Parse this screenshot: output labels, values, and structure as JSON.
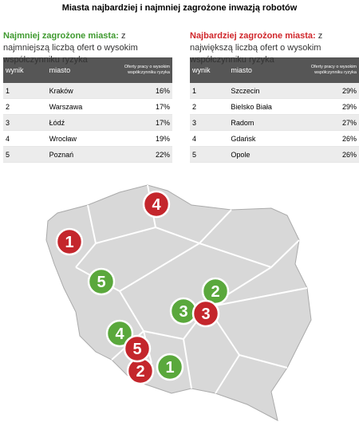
{
  "header": {
    "title": "Miasta najbardziej i najmniej zagrożone inwazją robotów"
  },
  "sections": [
    {
      "heading": "Najmniej zagrożone miasta:",
      "description": "z najmniejszą liczbą ofert o wysokim współczynniku ryzyka",
      "color": "#3f9a2f",
      "table": {
        "columns": [
          "wynik",
          "miasto",
          "Oferty pracy o wysokim współczynniku ryzyka"
        ],
        "rows": [
          [
            "1",
            "Kraków",
            "16%"
          ],
          [
            "2",
            "Warszawa",
            "17%"
          ],
          [
            "3",
            "Łódź",
            "17%"
          ],
          [
            "4",
            "Wrocław",
            "19%"
          ],
          [
            "5",
            "Poznań",
            "22%"
          ]
        ]
      }
    },
    {
      "heading": "Najbardziej zagrożone miasta:",
      "description": "z największą liczbą ofert o wysokim współczynniku ryzyka",
      "color": "#d0262b",
      "table": {
        "columns": [
          "wynik",
          "miasto",
          "Oferty pracy o wysokim współczynniku ryzyka"
        ],
        "rows": [
          [
            "1",
            "Szczecin",
            "29%"
          ],
          [
            "2",
            "Bielsko Biała",
            "29%"
          ],
          [
            "3",
            "Radom",
            "27%"
          ],
          [
            "4",
            "Gdańsk",
            "26%"
          ],
          [
            "5",
            "Opole",
            "26%"
          ]
        ]
      }
    }
  ],
  "map": {
    "markers": [
      {
        "label": "1",
        "color": "#5aa83c"
      },
      {
        "label": "2",
        "color": "#5aa83c"
      },
      {
        "label": "3",
        "color": "#5aa83c"
      },
      {
        "label": "4",
        "color": "#5aa83c"
      },
      {
        "label": "5",
        "color": "#5aa83c"
      },
      {
        "label": "1",
        "color": "#c4262c"
      },
      {
        "label": "2",
        "color": "#c4262c"
      },
      {
        "label": "3",
        "color": "#c4262c"
      },
      {
        "label": "4",
        "color": "#c4262c"
      },
      {
        "label": "5",
        "color": "#c4262c"
      }
    ]
  }
}
